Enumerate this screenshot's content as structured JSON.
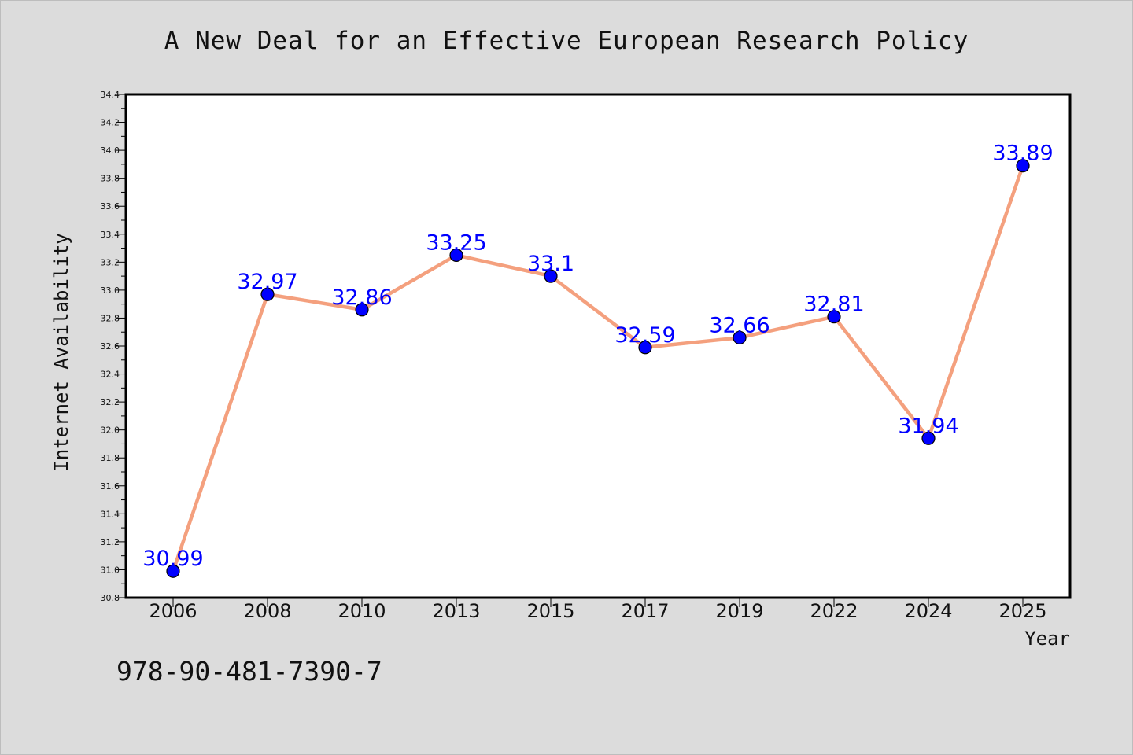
{
  "chart_data": {
    "type": "line",
    "title": "A New Deal for an Effective European Research Policy",
    "xlabel": "Year",
    "ylabel": "Internet Availability",
    "categories": [
      "2006",
      "2008",
      "2010",
      "2013",
      "2015",
      "2017",
      "2019",
      "2022",
      "2024",
      "2025"
    ],
    "series": [
      {
        "values": [
          30.99,
          32.97,
          32.86,
          33.25,
          33.1,
          32.59,
          32.66,
          32.81,
          31.94,
          33.89
        ],
        "labels": [
          "30.99",
          "32.97",
          "32.86",
          "33.25",
          "33.1",
          "32.59",
          "32.66",
          "32.81",
          "31.94",
          "33.89"
        ]
      }
    ],
    "ylim": [
      30.8,
      34.4
    ],
    "yticks": [
      "30.8",
      "31.0",
      "31.2",
      "31.4",
      "31.6",
      "31.8",
      "32.0",
      "32.2",
      "32.4",
      "32.6",
      "32.8",
      "33.0",
      "33.2",
      "33.4",
      "33.6",
      "33.8",
      "34.0",
      "34.2",
      "34.4"
    ],
    "grid": false,
    "line_color": "#f4a07e",
    "marker_color": "#0000ff",
    "label_color": "#0000ff"
  },
  "footer": {
    "isbn": "978-90-481-7390-7"
  }
}
